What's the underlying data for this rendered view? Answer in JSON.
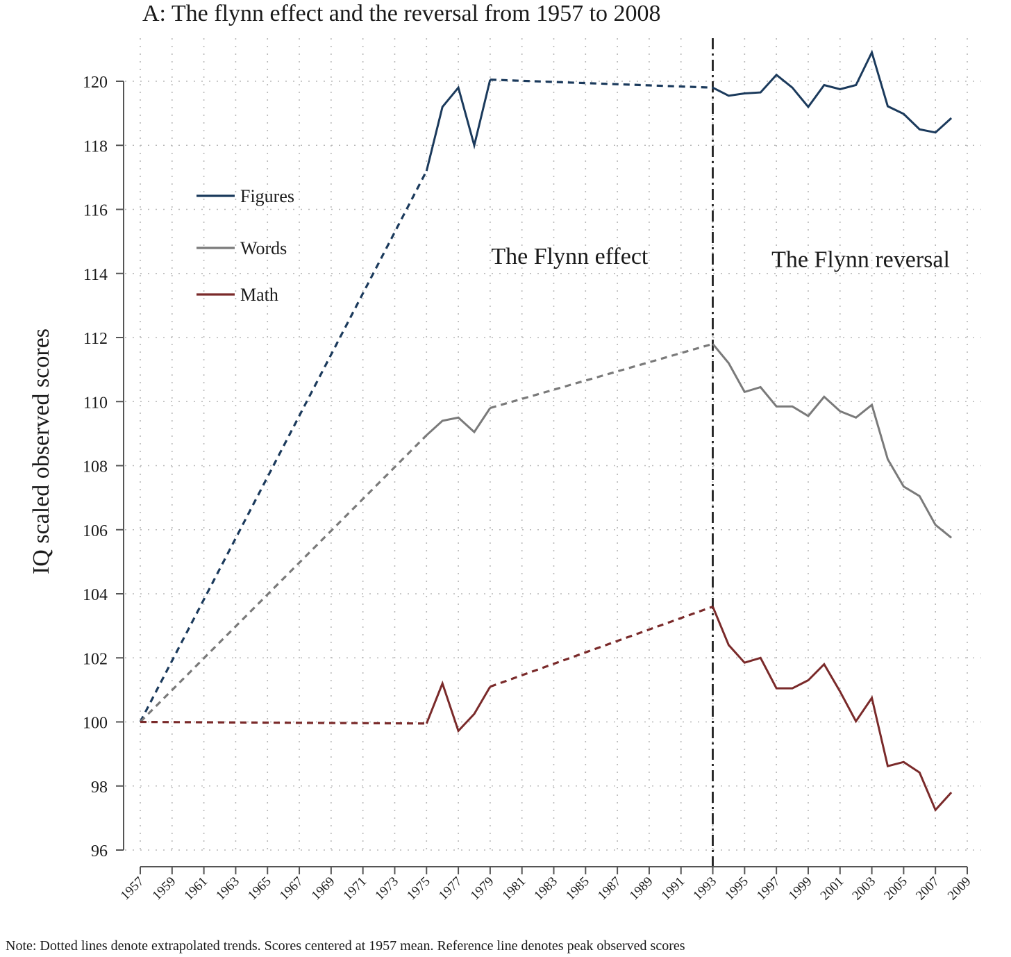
{
  "chart_data": {
    "type": "line",
    "title": "A: The flynn effect and the reversal from 1957 to 2008",
    "xlabel": "",
    "ylabel": "IQ scaled observed scores",
    "xlim": [
      1957,
      2009
    ],
    "ylim": [
      96,
      121
    ],
    "yticks": [
      96,
      98,
      100,
      102,
      104,
      106,
      108,
      110,
      112,
      114,
      116,
      118,
      120
    ],
    "xticks": [
      1957,
      1959,
      1961,
      1963,
      1965,
      1967,
      1969,
      1971,
      1973,
      1975,
      1977,
      1979,
      1981,
      1983,
      1985,
      1987,
      1989,
      1991,
      1993,
      1995,
      1997,
      1999,
      2001,
      2003,
      2005,
      2007,
      2009
    ],
    "grid": true,
    "legend_position": "upper-left",
    "reference_line_x": 1993,
    "annotations": [
      {
        "text": "The Flynn effect",
        "x": 1984,
        "y": 114.3
      },
      {
        "text": "The Flynn reversal",
        "x": 2002.3,
        "y": 114.2
      }
    ],
    "note": "Note: Dotted lines denote extrapolated trends. Scores centered at 1957 mean. Reference line denotes peak observed scores",
    "series": [
      {
        "name": "Figures",
        "color": "#1b3a5c",
        "extrapolated_segments": [
          [
            [
              1957,
              100.0
            ],
            [
              1975,
              117.2
            ]
          ],
          [
            [
              1979,
              120.05
            ],
            [
              1993,
              119.8
            ]
          ]
        ],
        "x": [
          1975,
          1976,
          1977,
          1978,
          1979,
          1993,
          1994,
          1995,
          1996,
          1997,
          1998,
          1999,
          2000,
          2001,
          2002,
          2003,
          2004,
          2005,
          2006,
          2007,
          2008
        ],
        "values": [
          117.2,
          119.2,
          119.8,
          118.0,
          120.05,
          119.8,
          119.55,
          119.62,
          119.65,
          120.2,
          119.8,
          119.2,
          119.88,
          119.75,
          119.88,
          120.9,
          119.22,
          118.98,
          118.5,
          118.4,
          118.85
        ]
      },
      {
        "name": "Words",
        "color": "#7a7a7a",
        "extrapolated_segments": [
          [
            [
              1957,
              100.0
            ],
            [
              1975,
              108.95
            ]
          ],
          [
            [
              1979,
              109.8
            ],
            [
              1993,
              111.8
            ]
          ]
        ],
        "x": [
          1975,
          1976,
          1977,
          1978,
          1979,
          1993,
          1994,
          1995,
          1996,
          1997,
          1998,
          1999,
          2000,
          2001,
          2002,
          2003,
          2004,
          2005,
          2006,
          2007,
          2008
        ],
        "values": [
          108.95,
          109.4,
          109.5,
          109.05,
          109.8,
          111.8,
          111.2,
          110.3,
          110.45,
          109.85,
          109.85,
          109.55,
          110.15,
          109.7,
          109.5,
          109.9,
          108.2,
          107.35,
          107.05,
          106.15,
          105.75
        ]
      },
      {
        "name": "Math",
        "color": "#7a2a2a",
        "extrapolated_segments": [
          [
            [
              1957,
              100.0
            ],
            [
              1975,
              99.95
            ]
          ],
          [
            [
              1979,
              101.1
            ],
            [
              1993,
              103.6
            ]
          ]
        ],
        "x": [
          1975,
          1976,
          1977,
          1978,
          1979,
          1993,
          1994,
          1995,
          1996,
          1997,
          1998,
          1999,
          2000,
          2001,
          2002,
          2003,
          2004,
          2005,
          2006,
          2007,
          2008
        ],
        "values": [
          99.95,
          101.2,
          99.72,
          100.25,
          101.1,
          103.6,
          102.4,
          101.85,
          102.0,
          101.05,
          101.05,
          101.3,
          101.8,
          100.95,
          100.02,
          100.75,
          98.62,
          98.75,
          98.42,
          97.25,
          97.8
        ]
      }
    ]
  }
}
